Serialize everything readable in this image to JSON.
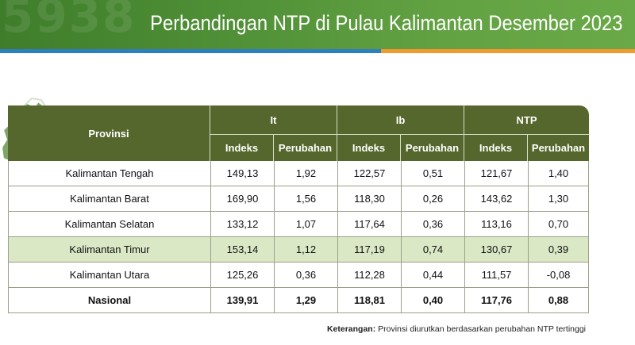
{
  "header": {
    "title": "Perbandingan NTP di Pulau Kalimantan Desember 2023",
    "colors": {
      "banner": "#4f8f36",
      "blue_bar": "#2d7fc1",
      "orange_bar": "#f29a2e"
    }
  },
  "table": {
    "header": {
      "provinsi": "Provinsi",
      "groups": [
        "It",
        "Ib",
        "NTP"
      ],
      "sub": [
        "Indeks",
        "Perubahan"
      ],
      "color": "#55672c"
    },
    "rows": [
      {
        "provinsi": "Kalimantan Tengah",
        "it_indeks": "149,13",
        "it_perubahan": "1,92",
        "ib_indeks": "122,57",
        "ib_perubahan": "0,51",
        "ntp_indeks": "121,67",
        "ntp_perubahan": "1,40"
      },
      {
        "provinsi": "Kalimantan Barat",
        "it_indeks": "169,90",
        "it_perubahan": "1,56",
        "ib_indeks": "118,30",
        "ib_perubahan": "0,26",
        "ntp_indeks": "143,62",
        "ntp_perubahan": "1,30"
      },
      {
        "provinsi": "Kalimantan Selatan",
        "it_indeks": "133,12",
        "it_perubahan": "1,07",
        "ib_indeks": "117,64",
        "ib_perubahan": "0,36",
        "ntp_indeks": "113,16",
        "ntp_perubahan": "0,70"
      },
      {
        "provinsi": "Kalimantan Timur",
        "it_indeks": "153,14",
        "it_perubahan": "1,12",
        "ib_indeks": "117,19",
        "ib_perubahan": "0,74",
        "ntp_indeks": "130,67",
        "ntp_perubahan": "0,39"
      },
      {
        "provinsi": "Kalimantan Utara",
        "it_indeks": "125,26",
        "it_perubahan": "0,36",
        "ib_indeks": "112,28",
        "ib_perubahan": "0,44",
        "ntp_indeks": "111,57",
        "ntp_perubahan": "-0,08"
      }
    ],
    "highlight_row": "Kalimantan Timur",
    "highlight_color": "#dbe8c6",
    "total": {
      "provinsi": "Nasional",
      "it_indeks": "139,91",
      "it_perubahan": "1,29",
      "ib_indeks": "118,81",
      "ib_perubahan": "0,40",
      "ntp_indeks": "117,76",
      "ntp_perubahan": "0,88"
    }
  },
  "note": {
    "label": "Keterangan:",
    "text": "Provinsi diurutkan berdasarkan perubahan NTP tertinggi"
  }
}
